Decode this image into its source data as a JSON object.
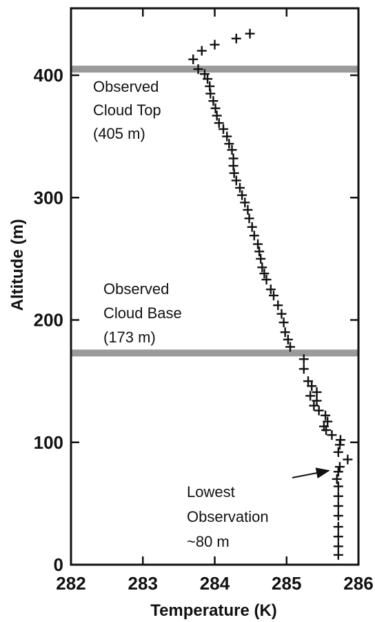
{
  "chart_data": {
    "type": "scatter",
    "title": "",
    "xlabel": "Temperature (K)",
    "ylabel": "Altitude (m)",
    "xlim": [
      282,
      286
    ],
    "ylim": [
      0,
      450
    ],
    "xticks": [
      282,
      283,
      284,
      285,
      286
    ],
    "yticks": [
      0,
      100,
      200,
      300,
      400
    ],
    "grid": false,
    "legend": "none",
    "marker": "plus",
    "series": [
      {
        "name": "",
        "values": [
          [
            285.72,
            8
          ],
          [
            285.72,
            15
          ],
          [
            285.72,
            23
          ],
          [
            285.72,
            31
          ],
          [
            285.72,
            40
          ],
          [
            285.72,
            48
          ],
          [
            285.72,
            56
          ],
          [
            285.72,
            64
          ],
          [
            285.7,
            70
          ],
          [
            285.72,
            76
          ],
          [
            285.74,
            80
          ],
          [
            285.85,
            86
          ],
          [
            285.72,
            92
          ],
          [
            285.74,
            98
          ],
          [
            285.75,
            102
          ],
          [
            285.63,
            106
          ],
          [
            285.55,
            110
          ],
          [
            285.52,
            113
          ],
          [
            285.57,
            117
          ],
          [
            285.54,
            122
          ],
          [
            285.45,
            126
          ],
          [
            285.38,
            130
          ],
          [
            285.42,
            134
          ],
          [
            285.33,
            138
          ],
          [
            285.42,
            141
          ],
          [
            285.35,
            146
          ],
          [
            285.3,
            150
          ],
          [
            285.24,
            160
          ],
          [
            285.24,
            168
          ],
          [
            285.05,
            178
          ],
          [
            285.02,
            184
          ],
          [
            284.98,
            190
          ],
          [
            284.96,
            198
          ],
          [
            284.93,
            205
          ],
          [
            284.88,
            212
          ],
          [
            284.82,
            220
          ],
          [
            284.78,
            225
          ],
          [
            284.72,
            233
          ],
          [
            284.69,
            238
          ],
          [
            284.66,
            243
          ],
          [
            284.64,
            250
          ],
          [
            284.62,
            256
          ],
          [
            284.6,
            262
          ],
          [
            284.55,
            269
          ],
          [
            284.52,
            276
          ],
          [
            284.48,
            283
          ],
          [
            284.46,
            290
          ],
          [
            284.42,
            296
          ],
          [
            284.38,
            302
          ],
          [
            284.35,
            308
          ],
          [
            284.3,
            314
          ],
          [
            284.27,
            320
          ],
          [
            284.26,
            326
          ],
          [
            284.26,
            332
          ],
          [
            284.24,
            339
          ],
          [
            284.2,
            344
          ],
          [
            284.17,
            350
          ],
          [
            284.12,
            356
          ],
          [
            284.06,
            361
          ],
          [
            284.03,
            367
          ],
          [
            284.01,
            373
          ],
          [
            283.98,
            379
          ],
          [
            283.94,
            385
          ],
          [
            283.93,
            391
          ],
          [
            283.9,
            397
          ],
          [
            283.86,
            401
          ],
          [
            283.77,
            405
          ],
          [
            283.7,
            413
          ],
          [
            283.82,
            420
          ],
          [
            284.0,
            425
          ],
          [
            284.3,
            430
          ],
          [
            284.49,
            434
          ]
        ]
      }
    ],
    "reference_lines": [
      {
        "y": 405,
        "color": "#9a9a9a"
      },
      {
        "y": 173,
        "color": "#9a9a9a"
      }
    ],
    "annotations": [
      {
        "lines": [
          "Observed",
          "Cloud Top",
          "(405 m)"
        ]
      },
      {
        "lines": [
          "Observed",
          "Cloud Base",
          "(173 m)"
        ]
      },
      {
        "lines": [
          "Lowest",
          "Observation",
          "~80 m"
        ],
        "arrow_to": [
          285.72,
          78
        ]
      }
    ]
  }
}
